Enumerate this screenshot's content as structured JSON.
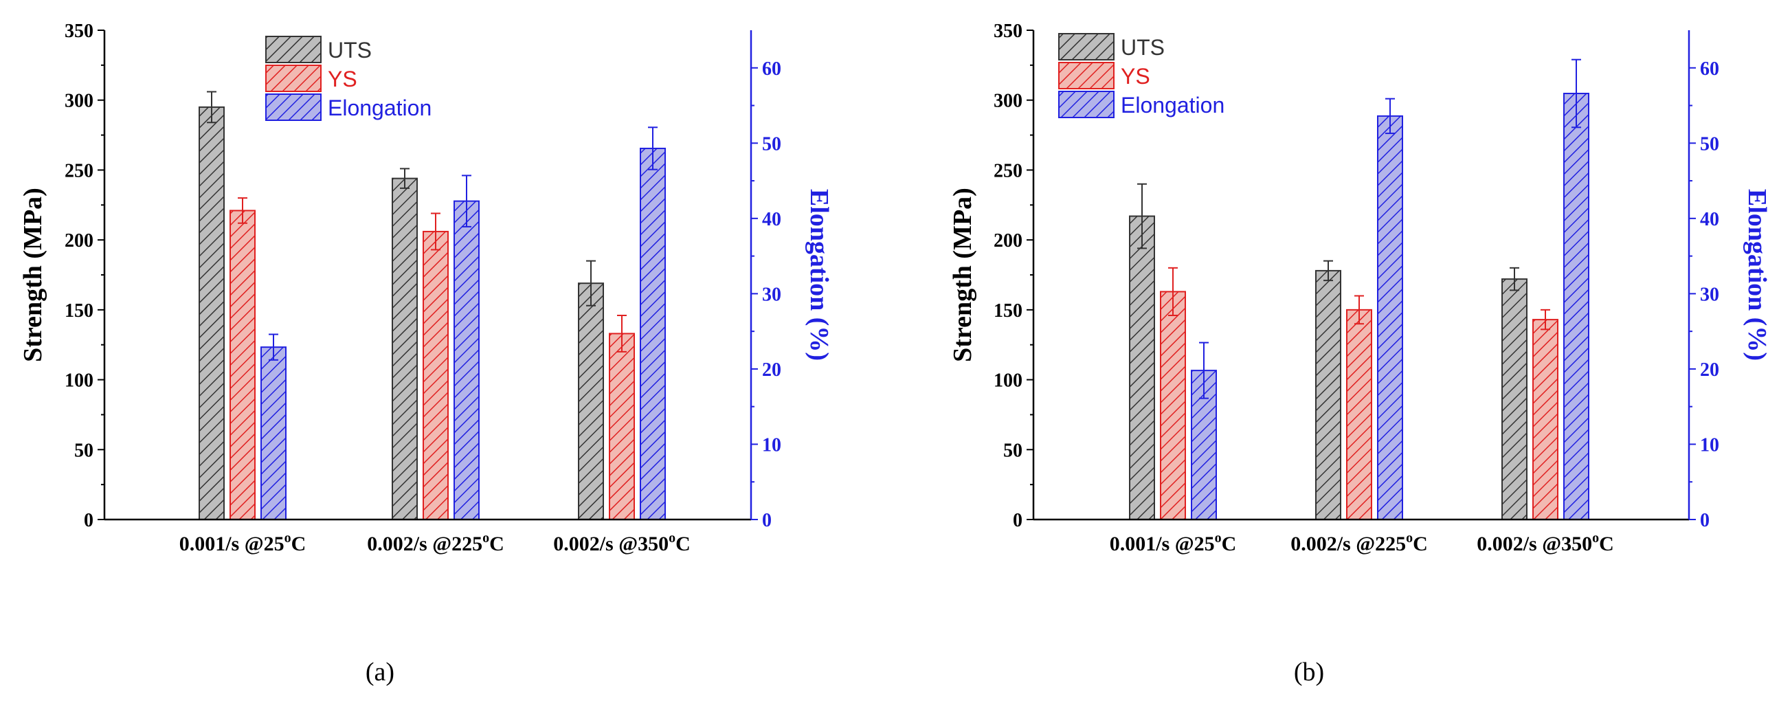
{
  "chart_data": [
    {
      "type": "bar",
      "panel_label": "(a)",
      "categories": [
        {
          "base": "0.001/s @25",
          "sup": "o",
          "unit": "C"
        },
        {
          "base": "0.002/s @225",
          "sup": "o",
          "unit": "C"
        },
        {
          "base": "0.002/s @350",
          "sup": "o",
          "unit": "C"
        }
      ],
      "ylabel": "Strength (MPa)",
      "y2label": "Elongation (%)",
      "ylim": [
        0,
        350
      ],
      "y2lim": [
        0,
        65
      ],
      "yticks": [
        "0",
        "50",
        "100",
        "150",
        "200",
        "250",
        "300",
        "350"
      ],
      "y2ticks": [
        "0",
        "10",
        "20",
        "30",
        "40",
        "50",
        "60"
      ],
      "legend": [
        "UTS",
        "YS",
        "Elongation"
      ],
      "series": [
        {
          "name": "UTS",
          "axis": "left",
          "color": "#333333",
          "fill": "#bdbdbd",
          "values": [
            295,
            244,
            169
          ],
          "errors": [
            11,
            7,
            16
          ]
        },
        {
          "name": "YS",
          "axis": "left",
          "color": "#e02020",
          "fill": "#f2b9b2",
          "values": [
            221,
            206,
            133
          ],
          "errors": [
            9,
            13,
            13
          ]
        },
        {
          "name": "Elongation",
          "axis": "right",
          "color": "#2020e0",
          "fill": "#b3b4ea",
          "values": [
            22.9,
            42.3,
            49.3
          ],
          "errors": [
            1.7,
            3.4,
            2.8
          ]
        }
      ]
    },
    {
      "type": "bar",
      "panel_label": "(b)",
      "categories": [
        {
          "base": "0.001/s @25",
          "sup": "o",
          "unit": "C"
        },
        {
          "base": "0.002/s @225",
          "sup": "o",
          "unit": "C"
        },
        {
          "base": "0.002/s @350",
          "sup": "o",
          "unit": "C"
        }
      ],
      "ylabel": "Strength (MPa)",
      "y2label": "Elongation (%)",
      "ylim": [
        0,
        350
      ],
      "y2lim": [
        0,
        65
      ],
      "yticks": [
        "0",
        "50",
        "100",
        "150",
        "200",
        "250",
        "300",
        "350"
      ],
      "y2ticks": [
        "0",
        "10",
        "20",
        "30",
        "40",
        "50",
        "60"
      ],
      "legend": [
        "UTS",
        "YS",
        "Elongation"
      ],
      "series": [
        {
          "name": "UTS",
          "axis": "left",
          "color": "#333333",
          "fill": "#bdbdbd",
          "values": [
            217,
            178,
            172
          ],
          "errors": [
            23,
            7,
            8
          ]
        },
        {
          "name": "YS",
          "axis": "left",
          "color": "#e02020",
          "fill": "#f2b9b2",
          "values": [
            163,
            150,
            143
          ],
          "errors": [
            17,
            10,
            7
          ]
        },
        {
          "name": "Elongation",
          "axis": "right",
          "color": "#2020e0",
          "fill": "#b3b4ea",
          "values": [
            19.8,
            53.6,
            56.6
          ],
          "errors": [
            3.7,
            2.3,
            4.5
          ]
        }
      ]
    }
  ]
}
